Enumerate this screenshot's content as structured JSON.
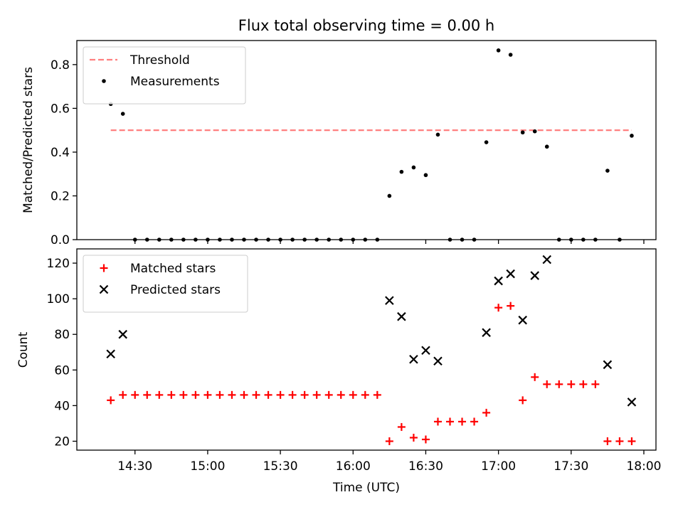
{
  "chart_data": [
    {
      "type": "scatter",
      "title": "Flux total observing time = 0.00 h",
      "xlabel": "",
      "ylabel": "Matched/Predicted stars",
      "xlim": [
        "14:06",
        "18:05"
      ],
      "ylim": [
        0,
        0.91
      ],
      "yticks": [
        0.0,
        0.2,
        0.4,
        0.6,
        0.8
      ],
      "ytick_labels": [
        "0.0",
        "0.2",
        "0.4",
        "0.6",
        "0.8"
      ],
      "grid": false,
      "legend_position": "top-left",
      "series": [
        {
          "name": "Threshold",
          "kind": "line",
          "style": "dashed",
          "color": "#ff7f7f",
          "x": [
            "14:20",
            "17:55"
          ],
          "y": [
            0.5,
            0.5
          ]
        },
        {
          "name": "Measurements",
          "kind": "scatter",
          "marker": "dot",
          "color": "#000000",
          "x": [
            "14:20",
            "14:25",
            "14:30",
            "14:35",
            "14:40",
            "14:45",
            "14:50",
            "14:55",
            "15:00",
            "15:05",
            "15:10",
            "15:15",
            "15:20",
            "15:25",
            "15:30",
            "15:35",
            "15:40",
            "15:45",
            "15:50",
            "15:55",
            "16:00",
            "16:05",
            "16:10",
            "16:15",
            "16:20",
            "16:25",
            "16:30",
            "16:35",
            "16:40",
            "16:45",
            "16:50",
            "16:55",
            "17:00",
            "17:05",
            "17:10",
            "17:15",
            "17:20",
            "17:25",
            "17:30",
            "17:35",
            "17:40",
            "17:45",
            "17:50",
            "17:55"
          ],
          "y": [
            0.62,
            0.575,
            0,
            0,
            0,
            0,
            0,
            0,
            0,
            0,
            0,
            0,
            0,
            0,
            0,
            0,
            0,
            0,
            0,
            0,
            0,
            0,
            0,
            0.2,
            0.31,
            0.33,
            0.295,
            0.48,
            0,
            0,
            0,
            0.445,
            0.865,
            0.845,
            0.49,
            0.495,
            0.425,
            0,
            0,
            0,
            0,
            0.315,
            0,
            0.475
          ]
        }
      ]
    },
    {
      "type": "scatter",
      "title": "",
      "xlabel": "Time (UTC)",
      "ylabel": "Count",
      "xlim": [
        "14:06",
        "18:05"
      ],
      "ylim": [
        15,
        128
      ],
      "xticks": [
        "14:30",
        "15:00",
        "15:30",
        "16:00",
        "16:30",
        "17:00",
        "17:30",
        "18:00"
      ],
      "yticks": [
        20,
        40,
        60,
        80,
        100,
        120
      ],
      "ytick_labels": [
        "20",
        "40",
        "60",
        "80",
        "100",
        "120"
      ],
      "grid": false,
      "legend_position": "top-left",
      "series": [
        {
          "name": "Matched stars",
          "kind": "scatter",
          "marker": "plus",
          "color": "#ff0000",
          "x": [
            "14:20",
            "14:25",
            "14:30",
            "14:35",
            "14:40",
            "14:45",
            "14:50",
            "14:55",
            "15:00",
            "15:05",
            "15:10",
            "15:15",
            "15:20",
            "15:25",
            "15:30",
            "15:35",
            "15:40",
            "15:45",
            "15:50",
            "15:55",
            "16:00",
            "16:05",
            "16:10",
            "16:15",
            "16:20",
            "16:25",
            "16:30",
            "16:35",
            "16:40",
            "16:45",
            "16:50",
            "16:55",
            "17:00",
            "17:05",
            "17:10",
            "17:15",
            "17:20",
            "17:25",
            "17:30",
            "17:35",
            "17:40",
            "17:45",
            "17:50",
            "17:55"
          ],
          "y": [
            43,
            46,
            46,
            46,
            46,
            46,
            46,
            46,
            46,
            46,
            46,
            46,
            46,
            46,
            46,
            46,
            46,
            46,
            46,
            46,
            46,
            46,
            46,
            20,
            28,
            22,
            21,
            31,
            31,
            31,
            31,
            36,
            95,
            96,
            43,
            56,
            52,
            52,
            52,
            52,
            52,
            20,
            20,
            20
          ]
        },
        {
          "name": "Predicted stars",
          "kind": "scatter",
          "marker": "x",
          "color": "#000000",
          "x": [
            "14:20",
            "14:25",
            "16:15",
            "16:20",
            "16:25",
            "16:30",
            "16:35",
            "16:55",
            "17:00",
            "17:05",
            "17:10",
            "17:15",
            "17:20",
            "17:45",
            "17:55"
          ],
          "y": [
            69,
            80,
            99,
            90,
            66,
            71,
            65,
            81,
            110,
            114,
            88,
            113,
            122,
            63,
            42
          ]
        }
      ]
    }
  ]
}
